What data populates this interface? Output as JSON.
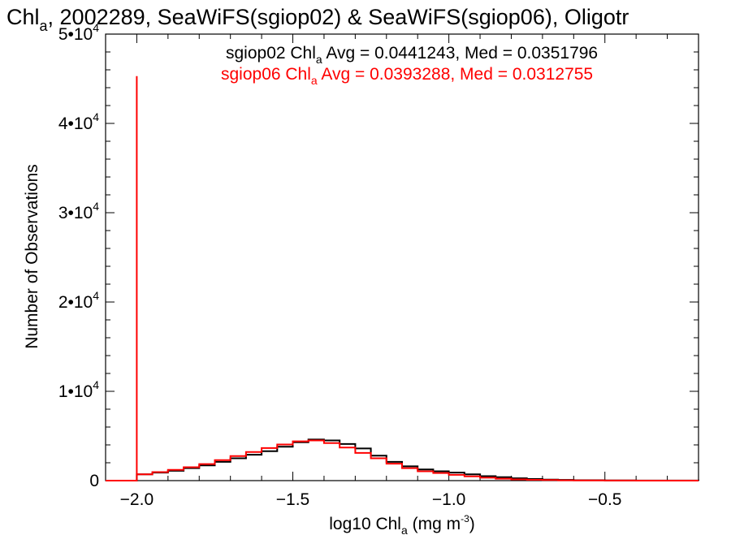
{
  "chart_data": {
    "type": "line",
    "title": {
      "prefix": "Chl",
      "sub": "a",
      "rest": ", 2002289, SeaWiFS(sgiop02) & SeaWiFS(sgiop06), Oligotr"
    },
    "xlabel": {
      "prefix": "log10 Chl",
      "sub": "a",
      "mid": " (mg m",
      "sup": "-3",
      "end": ")"
    },
    "ylabel": "Number of Observations",
    "xlim": [
      -2.1,
      -0.2
    ],
    "ylim": [
      0,
      50000
    ],
    "x_ticks": [
      {
        "value": -2.0,
        "label": "−2.0"
      },
      {
        "value": -1.5,
        "label": "−1.5"
      },
      {
        "value": -1.0,
        "label": "−1.0"
      },
      {
        "value": -0.5,
        "label": "−0.5"
      }
    ],
    "y_ticks": [
      {
        "value": 0,
        "mant": "0",
        "exp": ""
      },
      {
        "value": 10000,
        "mant": "1•10",
        "exp": "4"
      },
      {
        "value": 20000,
        "mant": "2•10",
        "exp": "4"
      },
      {
        "value": 30000,
        "mant": "3•10",
        "exp": "4"
      },
      {
        "value": 40000,
        "mant": "4•10",
        "exp": "4"
      },
      {
        "value": 50000,
        "mant": "5•10",
        "exp": "4"
      }
    ],
    "legend": [
      {
        "prefix": "sgiop02 Chl",
        "sub": "a",
        "rest": " Avg = 0.0441243, Med = 0.0351796",
        "color": "#000000"
      },
      {
        "prefix": "sgiop06 Chl",
        "sub": "a",
        "rest": " Avg = 0.0393288, Med = 0.0312755",
        "color": "#ff0000"
      }
    ],
    "series": [
      {
        "color": "#000000",
        "x": [
          -2.1,
          -2.0,
          -2.0,
          -1.95,
          -1.9,
          -1.85,
          -1.8,
          -1.75,
          -1.7,
          -1.65,
          -1.6,
          -1.55,
          -1.5,
          -1.45,
          -1.4,
          -1.35,
          -1.3,
          -1.25,
          -1.2,
          -1.15,
          -1.1,
          -1.05,
          -1.0,
          -0.95,
          -0.9,
          -0.85,
          -0.8,
          -0.75,
          -0.7,
          -0.65,
          -0.6,
          -0.5,
          -0.4,
          -0.2
        ],
        "values": [
          0,
          0,
          700,
          900,
          1100,
          1400,
          1700,
          2100,
          2500,
          2900,
          3300,
          3800,
          4300,
          4600,
          4500,
          4100,
          3600,
          2800,
          2100,
          1600,
          1250,
          1050,
          900,
          700,
          500,
          380,
          260,
          180,
          120,
          80,
          50,
          30,
          10,
          0
        ]
      },
      {
        "color": "#ff0000",
        "x": [
          -2.1,
          -2.0,
          -2.0,
          -2.0,
          -1.95,
          -1.9,
          -1.85,
          -1.8,
          -1.75,
          -1.7,
          -1.65,
          -1.6,
          -1.55,
          -1.5,
          -1.45,
          -1.4,
          -1.35,
          -1.3,
          -1.25,
          -1.2,
          -1.15,
          -1.1,
          -1.05,
          -1.0,
          -0.95,
          -0.9,
          -0.85,
          -0.8,
          -0.75,
          -0.7,
          -0.65,
          -0.6,
          -0.5,
          -0.4,
          -0.2
        ],
        "values": [
          0,
          0,
          45300,
          700,
          950,
          1200,
          1500,
          1850,
          2300,
          2750,
          3200,
          3650,
          4050,
          4400,
          4500,
          4200,
          3700,
          3100,
          2500,
          1900,
          1400,
          1050,
          850,
          650,
          480,
          330,
          220,
          140,
          90,
          60,
          40,
          25,
          10,
          0,
          0
        ]
      }
    ]
  }
}
